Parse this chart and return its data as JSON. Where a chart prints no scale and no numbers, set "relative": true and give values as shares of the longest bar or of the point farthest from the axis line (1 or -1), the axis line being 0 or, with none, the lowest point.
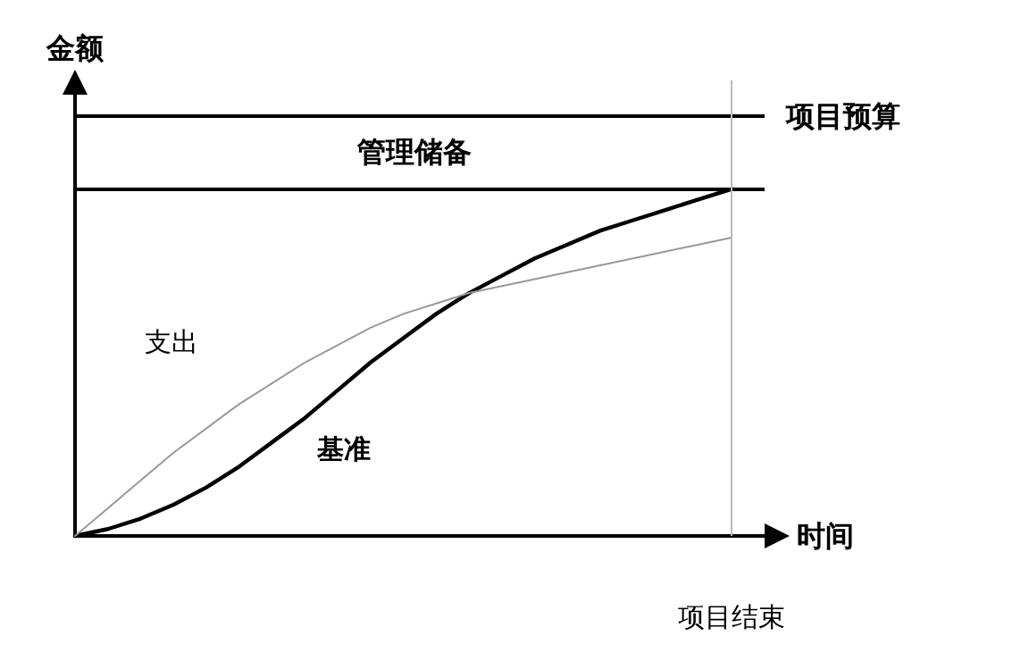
{
  "chart_data": {
    "type": "line",
    "relative": true,
    "xlabel": "时间",
    "ylabel": "金额",
    "categories": [
      null,
      null,
      null,
      null,
      null,
      null,
      null,
      null,
      null,
      null,
      null,
      null,
      null,
      null,
      null,
      null,
      null,
      null,
      null,
      null,
      null,
      null
    ],
    "series": [
      {
        "name": "基准",
        "color": "#000000",
        "values": [
          0,
          0.02,
          0.05,
          0.09,
          0.14,
          0.2,
          0.27,
          0.34,
          0.42,
          0.5,
          0.57,
          0.64,
          0.7,
          0.75,
          0.8,
          0.84,
          0.88,
          0.91,
          0.94,
          0.97,
          1,
          null
        ]
      },
      {
        "name": "支出",
        "color": "#999999",
        "values": [
          0,
          0.08,
          0.16,
          0.24,
          0.31,
          0.38,
          0.44,
          0.5,
          0.55,
          0.6,
          0.64,
          0.67,
          0.7,
          0.72,
          0.74,
          0.76,
          0.78,
          0.8,
          0.82,
          0.84,
          0.86,
          null
        ]
      }
    ],
    "ref_lines": [
      {
        "axis": "y",
        "value": 1.21,
        "label": "项目预算",
        "color": "#000000"
      },
      {
        "axis": "y",
        "value": 1,
        "label": null,
        "color": "#000000"
      },
      {
        "axis": "x",
        "label": "项目结束",
        "color": "#bbbbbb"
      }
    ],
    "annotations": [
      "管理储备"
    ],
    "marker": "none",
    "line_style": "solid",
    "grid": false,
    "legend": false
  }
}
